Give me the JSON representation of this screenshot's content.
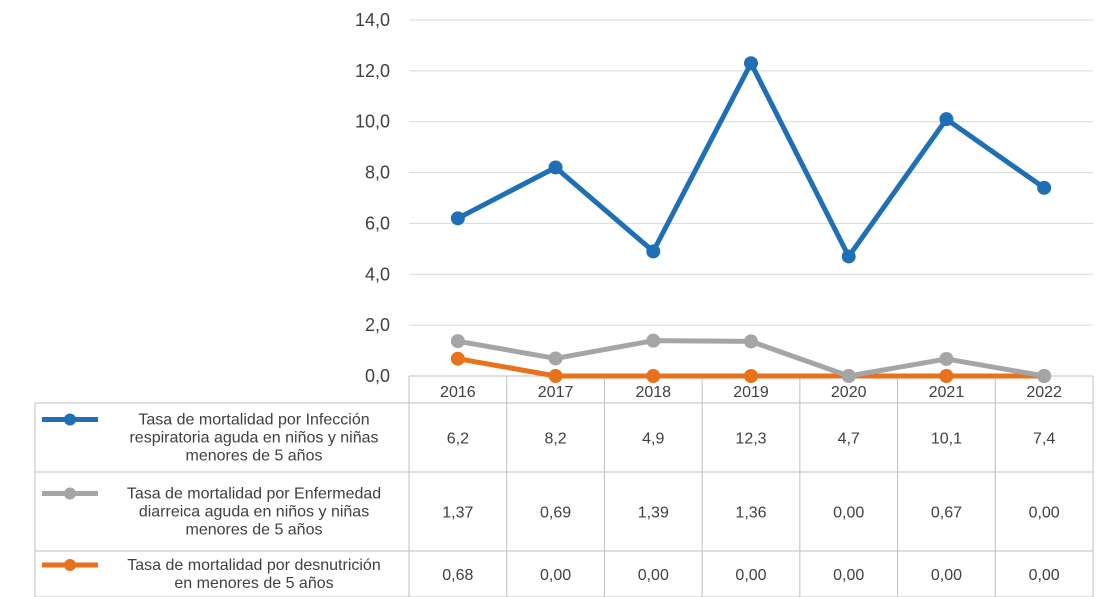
{
  "chart_data": {
    "type": "line",
    "title": "",
    "xlabel": "",
    "ylabel": "",
    "categories": [
      "2016",
      "2017",
      "2018",
      "2019",
      "2020",
      "2021",
      "2022"
    ],
    "ylim": [
      0,
      14
    ],
    "y_ticks": [
      "0,0",
      "2,0",
      "4,0",
      "6,0",
      "8,0",
      "10,0",
      "12,0",
      "14,0"
    ],
    "grid": true,
    "legend": "data-table-below",
    "series": [
      {
        "name": "Tasa de mortalidad por Infección respiratoria aguda en niños y niñas menores de 5 años",
        "name_lines": [
          "Tasa de mortalidad por Infección",
          "respiratoria aguda en niños y niñas",
          "menores de 5 años"
        ],
        "color": "#1f6fb6",
        "values": [
          6.2,
          8.2,
          4.9,
          12.3,
          4.7,
          10.1,
          7.4
        ],
        "labels": [
          "6,2",
          "8,2",
          "4,9",
          "12,3",
          "4,7",
          "10,1",
          "7,4"
        ]
      },
      {
        "name": "Tasa de mortalidad por Enfermedad diarreica aguda en niños y niñas menores de 5 años",
        "name_lines": [
          "Tasa de mortalidad por Enfermedad",
          "diarreica aguda en niños y niñas",
          "menores de 5 años"
        ],
        "color": "#a5a5a5",
        "values": [
          1.37,
          0.69,
          1.39,
          1.36,
          0.0,
          0.67,
          0.0
        ],
        "labels": [
          "1,37",
          "0,69",
          "1,39",
          "1,36",
          "0,00",
          "0,67",
          "0,00"
        ]
      },
      {
        "name": "Tasa de mortalidad por desnutrición en menores de 5 años",
        "name_lines": [
          "Tasa de mortalidad por desnutrición",
          "en menores de 5 años"
        ],
        "color": "#e8711c",
        "values": [
          0.68,
          0.0,
          0.0,
          0.0,
          0.0,
          0.0,
          0.0
        ],
        "labels": [
          "0,68",
          "0,00",
          "0,00",
          "0,00",
          "0,00",
          "0,00",
          "0,00"
        ]
      }
    ]
  }
}
